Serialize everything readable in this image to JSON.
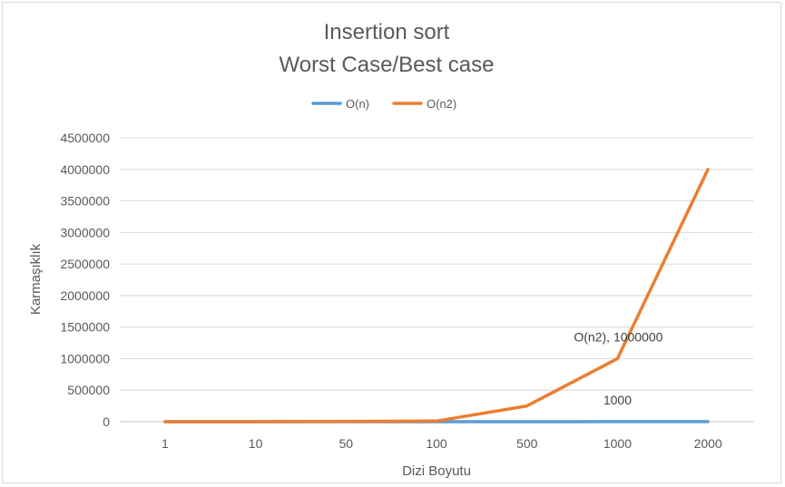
{
  "chart_data": {
    "type": "line",
    "title": [
      "Insertion sort",
      "Worst Case/Best case"
    ],
    "xlabel": "Dizi Boyutu",
    "ylabel": "Karmaşıklık",
    "categories": [
      "1",
      "10",
      "50",
      "100",
      "500",
      "1000",
      "2000"
    ],
    "ylim": [
      0,
      4500000
    ],
    "yticks": [
      0,
      500000,
      1000000,
      1500000,
      2000000,
      2500000,
      3000000,
      3500000,
      4000000,
      4500000
    ],
    "grid": true,
    "legend_position": "top",
    "series": [
      {
        "name": "O(n)",
        "color": "#5b9bd5",
        "values": [
          1,
          10,
          50,
          100,
          500,
          1000,
          2000
        ]
      },
      {
        "name": "O(n2)",
        "color": "#ed7d31",
        "values": [
          1,
          100,
          2500,
          10000,
          250000,
          1000000,
          4000000
        ]
      }
    ],
    "data_labels": [
      {
        "series": 1,
        "index": 5,
        "text": "O(n2), 1000000"
      },
      {
        "series": 0,
        "index": 5,
        "text": "1000"
      }
    ]
  }
}
